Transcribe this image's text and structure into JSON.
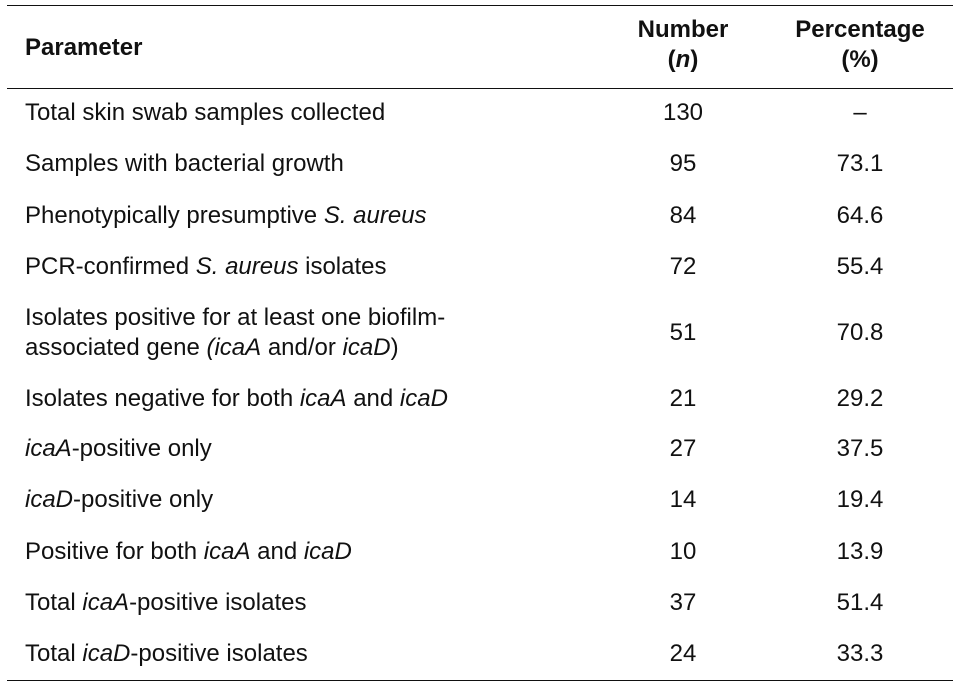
{
  "header": {
    "parameter": "Parameter",
    "number_line1": "Number",
    "number_open": "(",
    "number_symbol": "n",
    "number_close": ")",
    "percentage_line1": "Percentage",
    "percentage_line2": "(%)"
  },
  "rows": [
    {
      "segments": [
        {
          "text": "Total skin swab samples collected",
          "italic": false
        }
      ],
      "number": "130",
      "percentage": "–"
    },
    {
      "segments": [
        {
          "text": "Samples with bacterial growth",
          "italic": false
        }
      ],
      "number": "95",
      "percentage": "73.1"
    },
    {
      "segments": [
        {
          "text": "Phenotypically presumptive ",
          "italic": false
        },
        {
          "text": "S. aureus",
          "italic": true
        }
      ],
      "number": "84",
      "percentage": "64.6"
    },
    {
      "segments": [
        {
          "text": "PCR-confirmed ",
          "italic": false
        },
        {
          "text": "S. aureus",
          "italic": true
        },
        {
          "text": " isolates",
          "italic": false
        }
      ],
      "number": "72",
      "percentage": "55.4"
    },
    {
      "lines": [
        [
          {
            "text": "Isolates positive for at least one biofilm-",
            "italic": false
          }
        ],
        [
          {
            "text": "associated gene ",
            "italic": false
          },
          {
            "text": "(icaA",
            "italic": true
          },
          {
            "text": " and/or ",
            "italic": false
          },
          {
            "text": "icaD",
            "italic": true
          },
          {
            "text": ")",
            "italic": false
          }
        ]
      ],
      "number": "51",
      "percentage": "70.8"
    },
    {
      "segments": [
        {
          "text": "Isolates negative for both ",
          "italic": false
        },
        {
          "text": "icaA",
          "italic": true
        },
        {
          "text": " and ",
          "italic": false
        },
        {
          "text": "icaD",
          "italic": true
        }
      ],
      "number": "21",
      "percentage": "29.2"
    },
    {
      "segments": [
        {
          "text": "icaA",
          "italic": true
        },
        {
          "text": "-positive only",
          "italic": false
        }
      ],
      "number": "27",
      "percentage": "37.5"
    },
    {
      "segments": [
        {
          "text": "icaD",
          "italic": true
        },
        {
          "text": "-positive only",
          "italic": false
        }
      ],
      "number": "14",
      "percentage": "19.4"
    },
    {
      "segments": [
        {
          "text": "Positive for both ",
          "italic": false
        },
        {
          "text": "icaA",
          "italic": true
        },
        {
          "text": " and ",
          "italic": false
        },
        {
          "text": "icaD",
          "italic": true
        }
      ],
      "number": "10",
      "percentage": "13.9"
    },
    {
      "segments": [
        {
          "text": "Total ",
          "italic": false
        },
        {
          "text": "icaA",
          "italic": true
        },
        {
          "text": "-positive isolates",
          "italic": false
        }
      ],
      "number": "37",
      "percentage": "51.4"
    },
    {
      "segments": [
        {
          "text": "Total ",
          "italic": false
        },
        {
          "text": "icaD",
          "italic": true
        },
        {
          "text": "-positive isolates",
          "italic": false
        }
      ],
      "number": "24",
      "percentage": "33.3"
    }
  ]
}
